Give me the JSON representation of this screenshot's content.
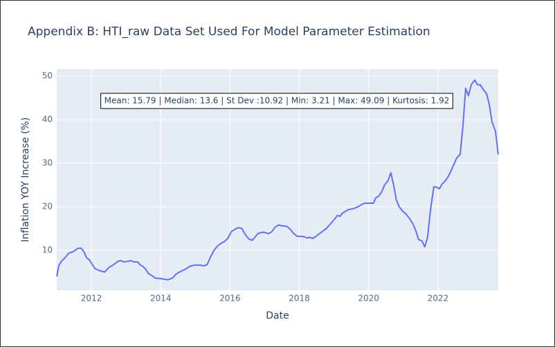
{
  "chart_data": {
    "type": "line",
    "title": "Appendix B: HTI_raw Data Set Used For Model Parameter Estimation",
    "x_label": "Date",
    "y_label": "Inflation YOY Increase (%)",
    "annotation": "Mean: 15.79 | Median: 13.6 | St Dev :10.92 | Min: 3.21 | Max: 49.09 | Kurtosis: 1.92",
    "x": [
      2011.0,
      2011.06,
      2011.14,
      2011.24,
      2011.34,
      2011.48,
      2011.6,
      2011.7,
      2011.78,
      2011.86,
      2011.94,
      2012.1,
      2012.24,
      2012.38,
      2012.5,
      2012.64,
      2012.78,
      2012.86,
      2012.94,
      2013.14,
      2013.24,
      2013.34,
      2013.4,
      2013.5,
      2013.58,
      2013.64,
      2013.78,
      2013.84,
      2014.0,
      2014.14,
      2014.2,
      2014.34,
      2014.44,
      2014.54,
      2014.7,
      2014.84,
      2014.98,
      2015.14,
      2015.24,
      2015.34,
      2015.44,
      2015.54,
      2015.64,
      2015.74,
      2015.84,
      2015.94,
      2016.04,
      2016.14,
      2016.24,
      2016.34,
      2016.44,
      2016.54,
      2016.64,
      2016.7,
      2016.8,
      2016.9,
      2017.0,
      2017.1,
      2017.2,
      2017.3,
      2017.4,
      2017.5,
      2017.64,
      2017.74,
      2017.84,
      2017.94,
      2018.04,
      2018.14,
      2018.24,
      2018.3,
      2018.38,
      2018.48,
      2018.58,
      2018.68,
      2018.78,
      2018.88,
      2018.98,
      2019.1,
      2019.18,
      2019.24,
      2019.34,
      2019.44,
      2019.54,
      2019.64,
      2019.74,
      2019.84,
      2019.94,
      2020.04,
      2020.14,
      2020.2,
      2020.3,
      2020.38,
      2020.46,
      2020.56,
      2020.64,
      2020.72,
      2020.8,
      2020.88,
      2020.98,
      2021.08,
      2021.18,
      2021.28,
      2021.36,
      2021.44,
      2021.54,
      2021.62,
      2021.7,
      2021.78,
      2021.88,
      2021.96,
      2022.04,
      2022.12,
      2022.22,
      2022.3,
      2022.38,
      2022.46,
      2022.54,
      2022.64,
      2022.72,
      2022.8,
      2022.88,
      2022.96,
      2023.06,
      2023.14,
      2023.22,
      2023.3,
      2023.4,
      2023.48,
      2023.56,
      2023.66,
      2023.74
    ],
    "series": [
      {
        "name": "HTI_raw",
        "color": "#636efa",
        "values": [
          4.0,
          6.5,
          7.5,
          8.3,
          9.3,
          9.7,
          10.4,
          10.5,
          9.7,
          8.3,
          7.8,
          5.8,
          5.3,
          5.0,
          6.0,
          6.7,
          7.5,
          7.6,
          7.3,
          7.6,
          7.3,
          7.3,
          6.7,
          6.2,
          5.5,
          4.7,
          4.0,
          3.6,
          3.5,
          3.3,
          3.21,
          3.6,
          4.5,
          5.0,
          5.6,
          6.3,
          6.6,
          6.6,
          6.4,
          6.7,
          8.5,
          10.0,
          11.0,
          11.6,
          12.0,
          12.8,
          14.3,
          14.8,
          15.2,
          15.0,
          13.6,
          12.6,
          12.3,
          12.8,
          13.8,
          14.1,
          14.1,
          13.8,
          14.2,
          15.3,
          15.8,
          15.6,
          15.5,
          14.8,
          13.8,
          13.2,
          13.2,
          13.1,
          12.8,
          13.0,
          12.7,
          13.2,
          13.8,
          14.4,
          15.0,
          15.9,
          16.8,
          18.0,
          17.8,
          18.5,
          19.0,
          19.4,
          19.5,
          19.8,
          20.2,
          20.7,
          20.8,
          20.8,
          20.8,
          22.0,
          22.5,
          23.5,
          25.0,
          26.0,
          27.8,
          25.0,
          21.5,
          20.0,
          19.0,
          18.3,
          17.3,
          16.0,
          14.5,
          12.5,
          12.1,
          10.8,
          13.0,
          19.0,
          24.6,
          24.5,
          24.1,
          25.2,
          26.0,
          27.0,
          28.3,
          29.7,
          31.2,
          32.0,
          38.5,
          47.2,
          45.5,
          48.0,
          49.09,
          48.0,
          48.0,
          47.0,
          46.0,
          43.5,
          39.5,
          37.3,
          32.0
        ]
      }
    ],
    "xlim": [
      2011.0,
      2023.74
    ],
    "xticks": [
      2012,
      2014,
      2016,
      2018,
      2020,
      2022
    ],
    "ylim": [
      0.8,
      51.6
    ],
    "yticks": [
      10,
      20,
      30,
      40,
      50
    ],
    "grid": true,
    "plot_background": "#e5ecf6"
  }
}
